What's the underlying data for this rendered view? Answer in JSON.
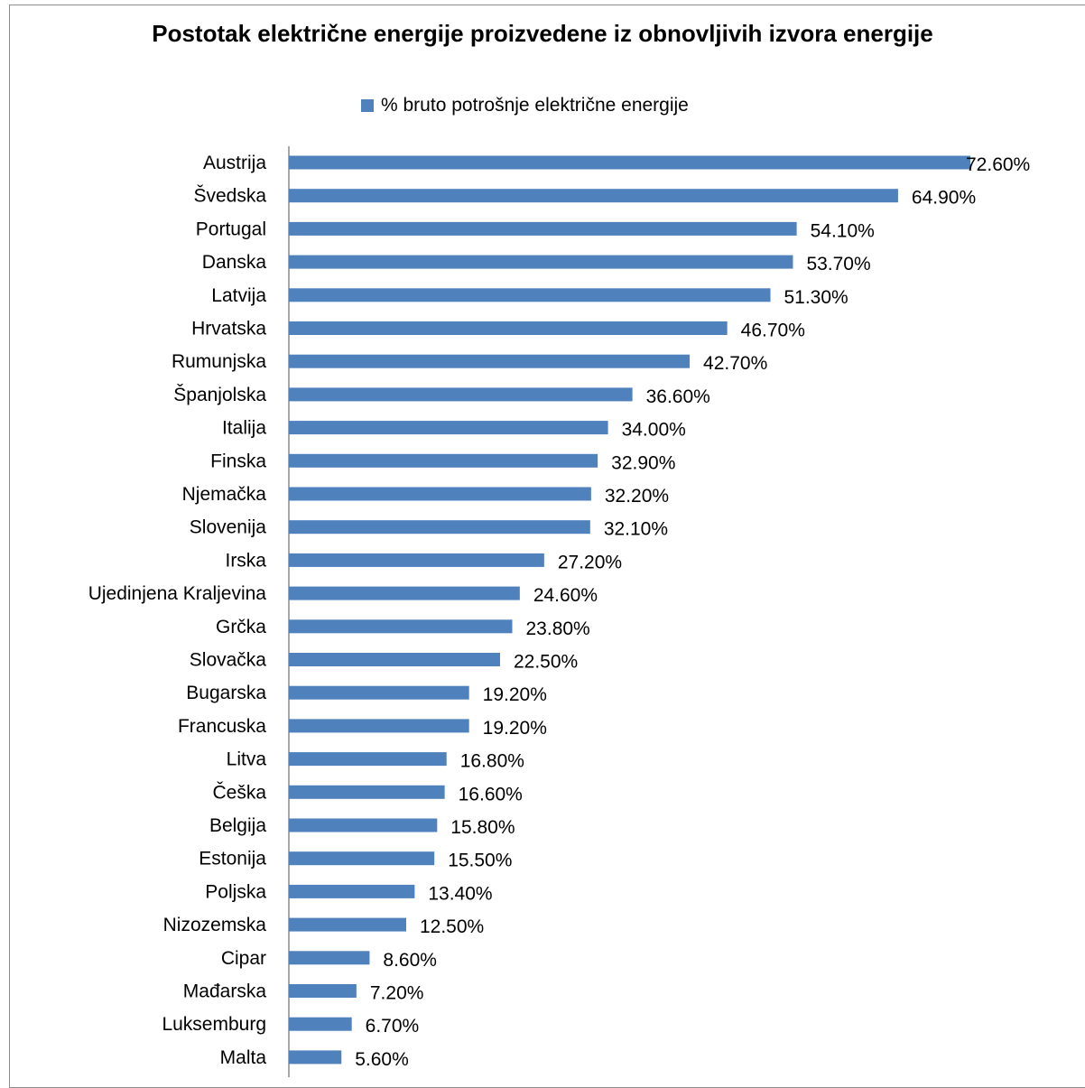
{
  "chart_data": {
    "type": "bar",
    "orientation": "horizontal",
    "title": "Postotak električne energije proizvedene iz obnovljivih izvora energije",
    "legend": {
      "position": "top",
      "entries": [
        "% bruto potrošnje električne energije"
      ]
    },
    "series": [
      {
        "name": "% bruto potrošnje električne energije",
        "color": "#4f81bd",
        "values": [
          72.6,
          64.9,
          54.1,
          53.7,
          51.3,
          46.7,
          42.7,
          36.6,
          34.0,
          32.9,
          32.2,
          32.1,
          27.2,
          24.6,
          23.8,
          22.5,
          19.2,
          19.2,
          16.8,
          16.6,
          15.8,
          15.5,
          13.4,
          12.5,
          8.6,
          7.2,
          6.7,
          5.6
        ]
      }
    ],
    "categories": [
      "Austrija",
      "Švedska",
      "Portugal",
      "Danska",
      "Latvija",
      "Hrvatska",
      "Rumunjska",
      "Španjolska",
      "Italija",
      "Finska",
      "Njemačka",
      "Slovenija",
      "Irska",
      "Ujedinjena Kraljevina",
      "Grčka",
      "Slovačka",
      "Bugarska",
      "Francuska",
      "Litva",
      "Češka",
      "Belgija",
      "Estonija",
      "Poljska",
      "Nizozemska",
      "Cipar",
      "Mađarska",
      "Luksemburg",
      "Malta"
    ],
    "data_labels": [
      "72.60%",
      "64.90%",
      "54.10%",
      "53.70%",
      "51.30%",
      "46.70%",
      "42.70%",
      "36.60%",
      "34.00%",
      "32.90%",
      "32.20%",
      "32.10%",
      "27.20%",
      "24.60%",
      "23.80%",
      "22.50%",
      "19.20%",
      "19.20%",
      "16.80%",
      "16.60%",
      "15.80%",
      "15.50%",
      "13.40%",
      "12.50%",
      "8.60%",
      "7.20%",
      "6.70%",
      "5.60%"
    ],
    "xlim": [
      0,
      72.6
    ],
    "grid": false
  }
}
